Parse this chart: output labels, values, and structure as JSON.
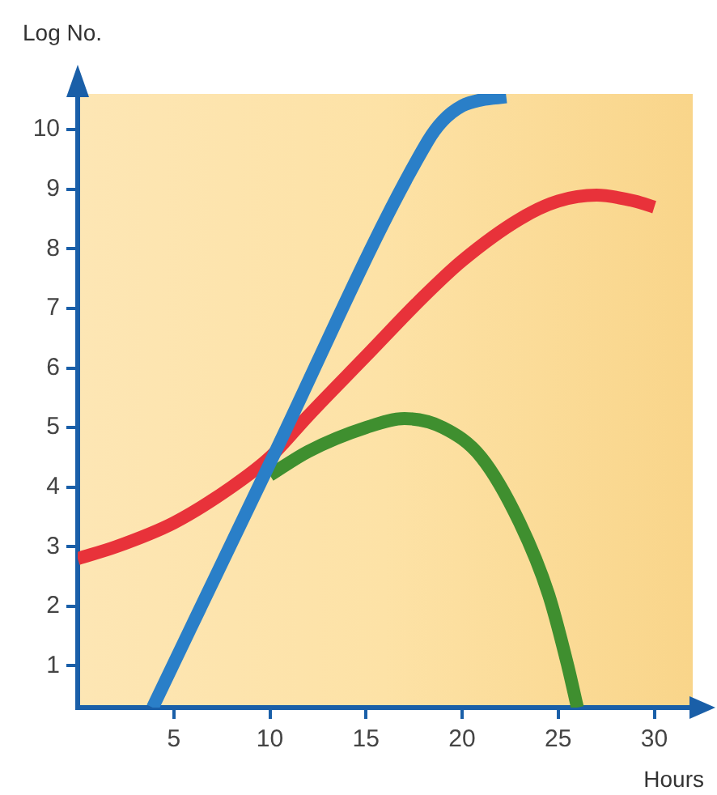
{
  "chart_data": {
    "type": "line",
    "xlabel": "Hours",
    "ylabel": "Log No.",
    "xlim": [
      0,
      32
    ],
    "ylim": [
      0.3,
      10.6
    ],
    "xticks": [
      5,
      10,
      15,
      20,
      25,
      30
    ],
    "yticks": [
      1,
      2,
      3,
      4,
      5,
      6,
      7,
      8,
      9,
      10
    ],
    "grid": false,
    "legend": false,
    "marker": "none",
    "line_style": "solid",
    "series": [
      {
        "color": "#2a7fc8",
        "x": [
          3.9,
          9.7,
          18.2,
          19,
          20,
          21,
          22.3
        ],
        "values": [
          0.3,
          4.2,
          9.8,
          10.15,
          10.4,
          10.5,
          10.55
        ]
      },
      {
        "color": "#e8323a",
        "x": [
          0,
          2,
          5,
          8,
          10,
          12,
          15,
          18,
          20,
          23,
          25,
          27,
          29,
          30
        ],
        "values": [
          2.8,
          3.0,
          3.4,
          4.0,
          4.5,
          5.2,
          6.2,
          7.2,
          7.8,
          8.5,
          8.8,
          8.9,
          8.8,
          8.7
        ]
      },
      {
        "color": "#3f8f2f",
        "x": [
          10,
          12,
          15,
          17,
          19,
          21,
          23,
          24.5,
          25.5,
          26
        ],
        "values": [
          4.2,
          4.6,
          5.0,
          5.15,
          5.0,
          4.5,
          3.4,
          2.2,
          1.0,
          0.3
        ]
      }
    ]
  }
}
